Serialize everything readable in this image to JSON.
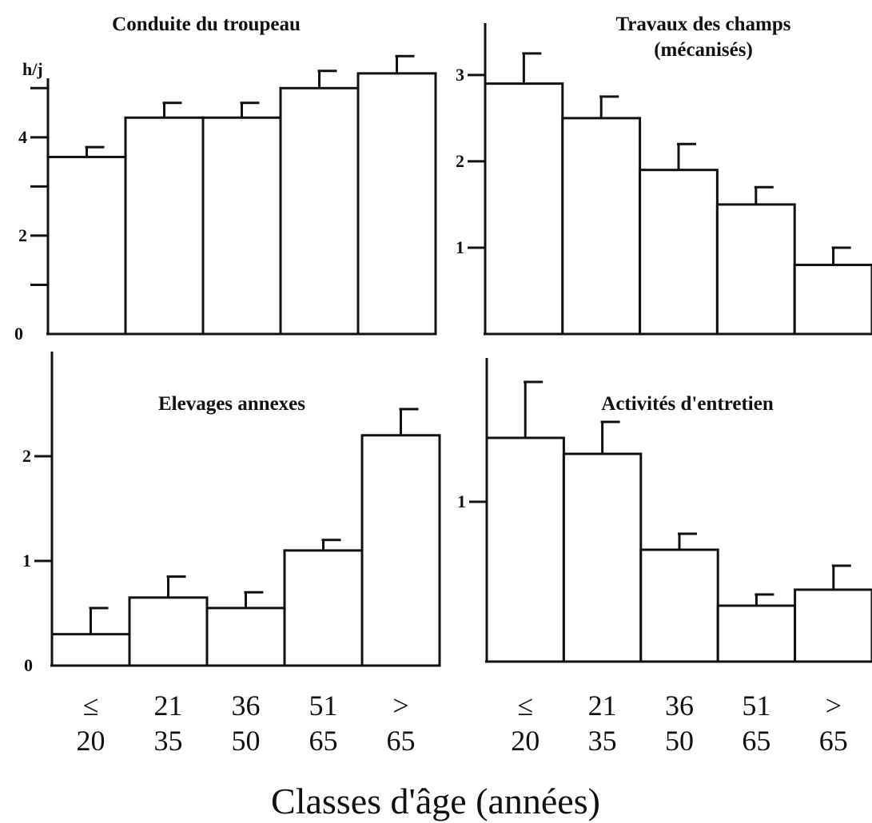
{
  "chart_data": [
    {
      "type": "bar",
      "title": [
        "Conduite du troupeau"
      ],
      "ylabel": "h/j",
      "values": [
        3.6,
        4.4,
        4.4,
        5.0,
        5.3
      ],
      "errors": [
        0.2,
        0.3,
        0.3,
        0.35,
        0.35
      ],
      "ylim": [
        0,
        5.2
      ],
      "yticks": [
        0,
        2,
        4
      ],
      "minor_yticks": [
        1,
        3,
        5
      ],
      "color": "#ffffff"
    },
    {
      "type": "bar",
      "title": [
        "Travaux des champs",
        "(mécanisés)"
      ],
      "values": [
        2.9,
        2.5,
        1.9,
        1.5,
        0.8
      ],
      "errors": [
        0.35,
        0.25,
        0.3,
        0.2,
        0.2
      ],
      "ylim": [
        0,
        3.6
      ],
      "yticks": [
        1,
        2,
        3
      ],
      "color": "#ffffff"
    },
    {
      "type": "bar",
      "title": [
        "Elevages annexes"
      ],
      "values": [
        0.3,
        0.65,
        0.55,
        1.1,
        2.2
      ],
      "errors": [
        0.25,
        0.2,
        0.15,
        0.1,
        0.25
      ],
      "ylim": [
        0,
        3
      ],
      "yticks": [
        0,
        1,
        2
      ],
      "color": "#ffffff"
    },
    {
      "type": "bar",
      "title": [
        "Activités d'entretien"
      ],
      "values": [
        1.4,
        1.3,
        0.7,
        0.35,
        0.45
      ],
      "errors": [
        0.35,
        0.2,
        0.1,
        0.07,
        0.15
      ],
      "ylim": [
        0,
        1.9
      ],
      "yticks": [
        1
      ],
      "color": "#ffffff"
    }
  ],
  "categories": [
    [
      "≤",
      "20"
    ],
    [
      "21",
      "35"
    ],
    [
      "36",
      "50"
    ],
    [
      "51",
      "65"
    ],
    [
      ">",
      "65"
    ]
  ],
  "xlabel": "Classes d'âge (années)"
}
